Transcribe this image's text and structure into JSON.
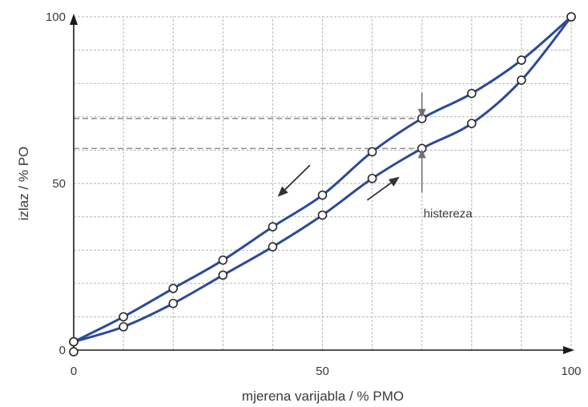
{
  "chart_data": {
    "type": "line",
    "xlabel": "mjerena varijabla / % PMO",
    "ylabel": "izlaz / % PO",
    "xlim": [
      0,
      100
    ],
    "ylim": [
      0,
      100
    ],
    "x_ticks": [
      "0",
      "50",
      "100"
    ],
    "y_ticks": [
      "0",
      "50",
      "100"
    ],
    "grid": true,
    "series": [
      {
        "direction": "increasing",
        "x": [
          0,
          10,
          20,
          30,
          40,
          50,
          60,
          70,
          80,
          90,
          100
        ],
        "y": [
          2.5,
          7,
          14,
          22.5,
          31,
          40.5,
          51.5,
          60.5,
          68,
          81,
          100
        ]
      },
      {
        "direction": "decreasing",
        "x": [
          100,
          90,
          80,
          70,
          60,
          50,
          40,
          30,
          20,
          10,
          0
        ],
        "y": [
          100,
          87,
          77,
          69.5,
          59.5,
          46.5,
          37,
          27,
          18.5,
          10,
          2.5
        ]
      }
    ],
    "extra_points": [
      {
        "x": 0,
        "y": -0.5
      }
    ],
    "reference_lines": [
      69.5,
      60.5
    ],
    "annotations": [
      {
        "text": "histereza",
        "x": 70
      }
    ],
    "colors": {
      "line": "#2a4a9a",
      "grid": "#b5b5b5",
      "axis": "#1a1a1a",
      "dashed": "#8a8a8a",
      "arrow": "#333333"
    }
  }
}
